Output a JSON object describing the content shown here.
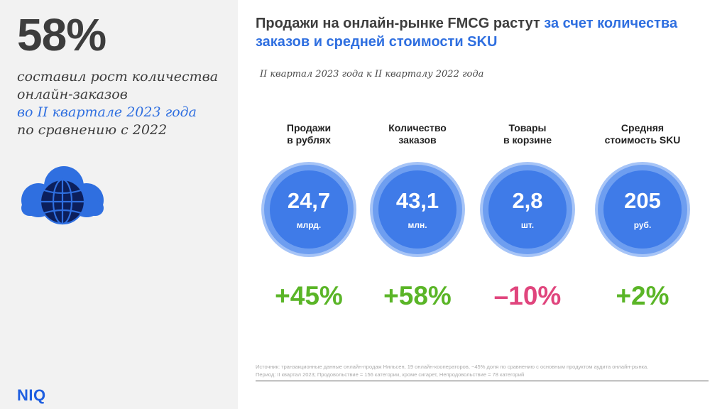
{
  "left": {
    "big_stat": "58%",
    "desc_line1": "составил рост количества",
    "desc_line2": "онлайн-заказов",
    "desc_line3": "во II квартале 2023 года",
    "desc_line4": "по сравнению с 2022",
    "icon": "cloud-globe-icon",
    "brand": "NIQ"
  },
  "headline": {
    "part1": "Продажи на онлайн-рынке FMCG растут ",
    "part2": "за счет количества заказов и средней стоимости SKU"
  },
  "subtitle": "II квартал 2023 года к II кварталу 2022 года",
  "metrics": [
    {
      "label_line1": "Продажи",
      "label_line2": "в рублях",
      "value": "24,7",
      "unit": "млрд.",
      "change": "+45%",
      "trend": "positive"
    },
    {
      "label_line1": "Количество",
      "label_line2": "заказов",
      "value": "43,1",
      "unit": "млн.",
      "change": "+58%",
      "trend": "positive"
    },
    {
      "label_line1": "Товары",
      "label_line2": "в корзине",
      "value": "2,8",
      "unit": "шт.",
      "change": "–10%",
      "trend": "negative"
    },
    {
      "label_line1": "Средняя",
      "label_line2": "стоимость SKU",
      "value": "205",
      "unit": "руб.",
      "change": "+2%",
      "trend": "positive"
    }
  ],
  "footnote": {
    "line1": "Источник: транзакционные данные онлайн-продаж Нильсен, 19 онлайн-кооператоров, ~45% доля по сравнению с основным продуктом аудита онлайн-рынка.",
    "line2": "Период: II квартал 2023; Продовольствие = 156 категории, кроме сигарет, Непродовольствие = 78 категорий"
  },
  "colors": {
    "accent_blue": "#2f6fe0",
    "positive": "#5ab527",
    "negative": "#e0457d",
    "circle": "#3f7be8"
  }
}
